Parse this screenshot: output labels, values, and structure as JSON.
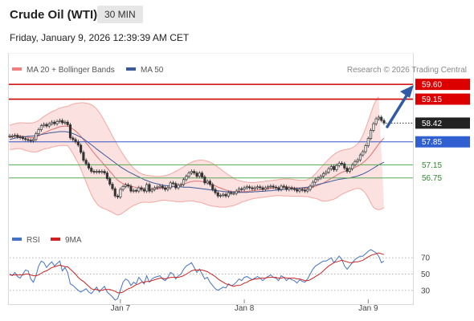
{
  "header": {
    "title": "Crude Oil (WTI)",
    "timeframe": "30 MIN",
    "datetime": "Friday, January 9, 2026 12:39:39 AM CET"
  },
  "legend": {
    "items": [
      {
        "label": "MA 20 + Bollinger Bands",
        "color": "#f08080"
      },
      {
        "label": "MA 50",
        "color": "#3a5a9a"
      }
    ],
    "credit": "Research © 2026 Trading Central"
  },
  "rsi_legend": {
    "items": [
      {
        "label": "RSI",
        "color": "#4472c4"
      },
      {
        "label": "9MA",
        "color": "#cc2222"
      }
    ]
  },
  "chart_data": {
    "type": "candlestick",
    "instrument": "Crude Oil (WTI)",
    "timeframe": "30 MIN",
    "x_tick_labels": [
      "Jan 7",
      "Jan 8",
      "Jan 9"
    ],
    "levels": [
      {
        "value": 59.6,
        "label": "59.60",
        "kind": "resistance",
        "color": "#cc0000",
        "tag_bg": "#dd0000",
        "tag_fg": "#ffffff"
      },
      {
        "value": 59.15,
        "label": "59.15",
        "kind": "resistance",
        "color": "#cc0000",
        "tag_bg": "#dd0000",
        "tag_fg": "#ffffff"
      },
      {
        "value": 58.42,
        "label": "58.42",
        "kind": "last",
        "color": "#222222",
        "tag_bg": "#222222",
        "tag_fg": "#ffffff"
      },
      {
        "value": 57.85,
        "label": "57.85",
        "kind": "pivot",
        "color": "#3355cc",
        "tag_bg": "#2f5fd0",
        "tag_fg": "#ffffff"
      },
      {
        "value": 57.15,
        "label": "57.15",
        "kind": "support",
        "color": "#55aa55",
        "tag_bg": "none",
        "tag_fg": "#2e8b2e"
      },
      {
        "value": 56.75,
        "label": "56.75",
        "kind": "support",
        "color": "#55aa55",
        "tag_bg": "none",
        "tag_fg": "#2e8b2e"
      }
    ],
    "price_close": [
      58.03,
      58.03,
      58.05,
      58.0,
      57.98,
      57.95,
      57.92,
      57.9,
      57.88,
      57.92,
      58.1,
      58.22,
      58.34,
      58.38,
      58.33,
      58.4,
      58.45,
      58.4,
      58.47,
      58.5,
      58.43,
      58.45,
      58.37,
      57.97,
      57.92,
      57.85,
      57.75,
      57.53,
      57.29,
      57.18,
      57.05,
      56.95,
      56.93,
      56.95,
      56.93,
      56.95,
      56.9,
      56.73,
      56.56,
      56.42,
      56.2,
      56.17,
      56.4,
      56.49,
      56.54,
      56.5,
      56.35,
      56.37,
      56.35,
      56.45,
      56.4,
      56.35,
      56.55,
      56.35,
      56.4,
      56.45,
      56.47,
      56.5,
      56.45,
      56.4,
      56.45,
      56.6,
      56.58,
      56.45,
      56.53,
      56.55,
      56.7,
      56.8,
      56.9,
      56.95,
      56.9,
      56.8,
      56.9,
      56.78,
      56.6,
      56.65,
      56.55,
      56.4,
      56.3,
      56.2,
      56.22,
      56.25,
      56.2,
      56.3,
      56.28,
      56.28,
      56.35,
      56.42,
      56.4,
      56.45,
      56.48,
      56.45,
      56.42,
      56.45,
      56.48,
      56.45,
      56.4,
      56.45,
      56.48,
      56.5,
      56.47,
      56.45,
      56.4,
      56.5,
      56.48,
      56.4,
      56.45,
      56.42,
      56.4,
      56.35,
      56.4,
      56.38,
      56.35,
      56.4,
      56.5,
      56.62,
      56.7,
      56.75,
      56.8,
      56.88,
      56.93,
      57.03,
      57.1,
      57.0,
      57.13,
      57.2,
      57.18,
      57.05,
      56.95,
      57.03,
      57.15,
      57.25,
      57.3,
      57.45,
      57.55,
      57.73,
      57.95,
      58.2,
      58.4,
      58.55,
      58.6,
      58.5,
      58.42
    ],
    "ma20": [
      57.98,
      58.0,
      58.02,
      58.03,
      58.03,
      58.02,
      58.0,
      57.99,
      57.98,
      57.98,
      58.0,
      58.03,
      58.08,
      58.12,
      58.15,
      58.19,
      58.23,
      58.25,
      58.28,
      58.31,
      58.32,
      58.33,
      58.33,
      58.29,
      58.24,
      58.18,
      58.11,
      58.02,
      57.92,
      57.82,
      57.72,
      57.61,
      57.51,
      57.41,
      57.32,
      57.23,
      57.14,
      57.05,
      56.95,
      56.86,
      56.76,
      56.68,
      56.62,
      56.58,
      56.55,
      56.53,
      56.5,
      56.48,
      56.46,
      56.45,
      56.44,
      56.43,
      56.42,
      56.41,
      56.41,
      56.41,
      56.42,
      56.43,
      56.44,
      56.44,
      56.45,
      56.46,
      56.48,
      56.49,
      56.51,
      56.53,
      56.56,
      56.59,
      56.62,
      56.64,
      56.65,
      56.65,
      56.65,
      56.64,
      56.62,
      56.6,
      56.57,
      56.54,
      56.51,
      56.47,
      56.44,
      56.41,
      56.38,
      56.36,
      56.34,
      56.33,
      56.32,
      56.32,
      56.33,
      56.33,
      56.34,
      56.35,
      56.36,
      56.37,
      56.38,
      56.39,
      56.4,
      56.41,
      56.42,
      56.43,
      56.44,
      56.45,
      56.45,
      56.46,
      56.46,
      56.46,
      56.46,
      56.45,
      56.45,
      56.44,
      56.44,
      56.43,
      56.43,
      56.44,
      56.45,
      56.47,
      56.5,
      56.53,
      56.56,
      56.6,
      56.64,
      56.69,
      56.74,
      56.78,
      56.83,
      56.88,
      56.92,
      56.95,
      56.97,
      57.0,
      57.03,
      57.07,
      57.11,
      57.16,
      57.21,
      57.28,
      57.36,
      57.45,
      57.56,
      57.67,
      57.78,
      57.88,
      57.96
    ],
    "bb_upper": [
      58.35,
      58.38,
      58.4,
      58.42,
      58.43,
      58.43,
      58.42,
      58.42,
      58.42,
      58.43,
      58.46,
      58.5,
      58.56,
      58.62,
      58.67,
      58.72,
      58.77,
      58.8,
      58.84,
      58.88,
      58.9,
      58.92,
      58.93,
      58.97,
      59.0,
      59.02,
      59.03,
      59.04,
      59.04,
      59.03,
      59.01,
      58.98,
      58.93,
      58.85,
      58.75,
      58.62,
      58.48,
      58.33,
      58.18,
      58.02,
      57.88,
      57.74,
      57.6,
      57.47,
      57.35,
      57.24,
      57.14,
      57.05,
      56.98,
      56.92,
      56.88,
      56.85,
      56.83,
      56.82,
      56.81,
      56.8,
      56.8,
      56.8,
      56.81,
      56.82,
      56.84,
      56.87,
      56.91,
      56.95,
      56.99,
      57.04,
      57.09,
      57.14,
      57.19,
      57.23,
      57.26,
      57.28,
      57.29,
      57.29,
      57.28,
      57.26,
      57.23,
      57.19,
      57.14,
      57.08,
      57.02,
      56.96,
      56.9,
      56.84,
      56.79,
      56.74,
      56.7,
      56.67,
      56.65,
      56.63,
      56.62,
      56.61,
      56.61,
      56.61,
      56.62,
      56.63,
      56.64,
      56.65,
      56.66,
      56.67,
      56.68,
      56.69,
      56.7,
      56.71,
      56.72,
      56.72,
      56.72,
      56.71,
      56.7,
      56.69,
      56.68,
      56.68,
      56.68,
      56.7,
      56.74,
      56.8,
      56.88,
      56.97,
      57.06,
      57.15,
      57.24,
      57.32,
      57.4,
      57.46,
      57.52,
      57.56,
      57.59,
      57.61,
      57.62,
      57.64,
      57.67,
      57.72,
      57.79,
      57.9,
      58.05,
      58.25,
      58.48,
      58.72,
      58.95,
      59.12,
      59.22
    ],
    "bb_lower": [
      57.62,
      57.62,
      57.63,
      57.64,
      57.64,
      57.62,
      57.59,
      57.57,
      57.55,
      57.54,
      57.54,
      57.56,
      57.6,
      57.63,
      57.64,
      57.66,
      57.69,
      57.7,
      57.72,
      57.74,
      57.74,
      57.74,
      57.73,
      57.62,
      57.49,
      57.35,
      57.2,
      57.02,
      56.82,
      56.62,
      56.42,
      56.24,
      56.09,
      55.97,
      55.89,
      55.84,
      55.81,
      55.78,
      55.74,
      55.7,
      55.65,
      55.62,
      55.64,
      55.69,
      55.75,
      55.81,
      55.86,
      55.91,
      55.94,
      55.98,
      56.0,
      56.01,
      56.01,
      56.0,
      56.01,
      56.02,
      56.04,
      56.06,
      56.07,
      56.07,
      56.06,
      56.05,
      56.05,
      56.03,
      56.03,
      56.02,
      56.03,
      56.04,
      56.05,
      56.05,
      56.04,
      56.02,
      56.01,
      55.99,
      55.96,
      55.93,
      55.91,
      55.89,
      55.88,
      55.87,
      55.86,
      55.86,
      55.86,
      55.88,
      55.89,
      55.91,
      55.94,
      55.97,
      56.01,
      56.04,
      56.06,
      56.09,
      56.11,
      56.13,
      56.14,
      56.15,
      56.16,
      56.17,
      56.18,
      56.19,
      56.2,
      56.21,
      56.21,
      56.21,
      56.2,
      56.2,
      56.2,
      56.19,
      56.19,
      56.19,
      56.2,
      56.19,
      56.18,
      56.18,
      56.16,
      56.14,
      56.13,
      56.1,
      56.06,
      56.05,
      56.04,
      56.06,
      56.08,
      56.1,
      56.14,
      56.2,
      56.25,
      56.29,
      56.32,
      56.36,
      56.39,
      56.42,
      56.43,
      56.42,
      56.37,
      56.28,
      56.15,
      55.98,
      55.85,
      55.8,
      55.78,
      55.8,
      55.85
    ],
    "ma50": [
      57.92,
      57.94,
      57.96,
      57.98,
      57.99,
      58.0,
      58.01,
      58.02,
      58.02,
      58.03,
      58.04,
      58.05,
      58.07,
      58.09,
      58.1,
      58.12,
      58.13,
      58.14,
      58.15,
      58.16,
      58.16,
      58.16,
      58.15,
      58.13,
      58.1,
      58.07,
      58.03,
      57.99,
      57.94,
      57.88,
      57.82,
      57.76,
      57.7,
      57.63,
      57.57,
      57.51,
      57.45,
      57.39,
      57.33,
      57.27,
      57.21,
      57.15,
      57.09,
      57.04,
      56.99,
      56.94,
      56.9,
      56.86,
      56.82,
      56.78,
      56.74,
      56.7,
      56.67,
      56.64,
      56.61,
      56.59,
      56.57,
      56.55,
      56.53,
      56.52,
      56.51,
      56.5,
      56.49,
      56.48,
      56.48,
      56.48,
      56.47,
      56.47,
      56.47,
      56.46,
      56.45,
      56.44,
      56.43,
      56.42,
      56.41,
      56.4,
      56.39,
      56.38,
      56.37,
      56.36,
      56.35,
      56.34,
      56.33,
      56.33,
      56.32,
      56.32,
      56.31,
      56.31,
      56.31,
      56.31,
      56.31,
      56.32,
      56.32,
      56.33,
      56.33,
      56.34,
      56.34,
      56.35,
      56.36,
      56.36,
      56.37,
      56.38,
      56.38,
      56.39,
      56.4,
      56.4,
      56.41,
      56.42,
      56.42,
      56.43,
      56.44,
      56.45,
      56.46,
      56.47,
      56.49,
      56.51,
      56.53,
      56.55,
      56.57,
      56.59,
      56.61,
      56.63,
      56.65,
      56.67,
      56.69,
      56.71,
      56.72,
      56.73,
      56.74,
      56.75,
      56.77,
      56.79,
      56.81,
      56.84,
      56.87,
      56.91,
      56.95,
      57.0,
      57.05,
      57.1,
      57.15,
      57.19,
      57.23
    ],
    "rsi_scale": {
      "min": 20,
      "max": 85,
      "ticks": [
        70,
        50,
        30
      ]
    },
    "rsi": [
      50,
      48,
      52,
      47,
      45,
      50,
      55,
      54,
      44,
      40,
      48,
      60,
      66,
      64,
      58,
      62,
      65,
      60,
      63,
      66,
      54,
      58,
      52,
      38,
      36,
      33,
      30,
      28,
      30,
      32,
      28,
      26,
      30,
      34,
      28,
      32,
      35,
      28,
      25,
      22,
      18,
      20,
      30,
      40,
      44,
      42,
      36,
      40,
      38,
      46,
      42,
      38,
      48,
      40,
      44,
      46,
      47,
      48,
      44,
      42,
      46,
      52,
      50,
      44,
      48,
      50,
      56,
      60,
      62,
      64,
      58,
      52,
      56,
      50,
      44,
      46,
      40,
      36,
      32,
      30,
      32,
      34,
      33,
      38,
      36,
      37,
      40,
      44,
      42,
      46,
      47,
      45,
      43,
      45,
      47,
      45,
      42,
      45,
      47,
      49,
      46,
      45,
      42,
      48,
      46,
      42,
      45,
      43,
      42,
      39,
      43,
      41,
      40,
      44,
      50,
      56,
      60,
      62,
      64,
      66,
      66,
      68,
      70,
      64,
      68,
      72,
      68,
      60,
      56,
      60,
      64,
      68,
      70,
      72,
      72,
      75,
      78,
      80,
      78,
      76,
      72,
      64,
      66
    ],
    "rsi_ma": [
      49,
      49,
      49,
      49,
      49,
      49,
      50,
      50,
      49,
      48,
      48,
      49,
      51,
      53,
      54,
      56,
      58,
      59,
      60,
      61,
      60,
      59,
      59,
      56,
      53,
      50,
      46,
      43,
      41,
      38,
      35,
      32,
      31,
      31,
      30,
      30,
      31,
      31,
      31,
      30,
      29,
      27,
      27,
      28,
      30,
      32,
      33,
      35,
      37,
      38,
      40,
      40,
      41,
      41,
      42,
      43,
      44,
      45,
      45,
      44,
      45,
      46,
      46,
      46,
      46,
      47,
      48,
      50,
      52,
      54,
      55,
      55,
      55,
      55,
      54,
      53,
      51,
      49,
      47,
      44,
      42,
      40,
      38,
      37,
      36,
      35,
      36,
      36,
      37,
      39,
      40,
      42,
      43,
      44,
      44,
      45,
      45,
      45,
      46,
      46,
      46,
      46,
      45,
      45,
      46,
      45,
      45,
      45,
      45,
      44,
      44,
      43,
      42,
      42,
      43,
      45,
      47,
      49,
      51,
      54,
      57,
      60,
      62,
      64,
      65,
      66,
      67,
      66,
      65,
      64,
      64,
      65,
      65,
      66,
      67,
      69,
      71,
      73,
      74,
      75,
      76,
      75,
      74
    ]
  }
}
